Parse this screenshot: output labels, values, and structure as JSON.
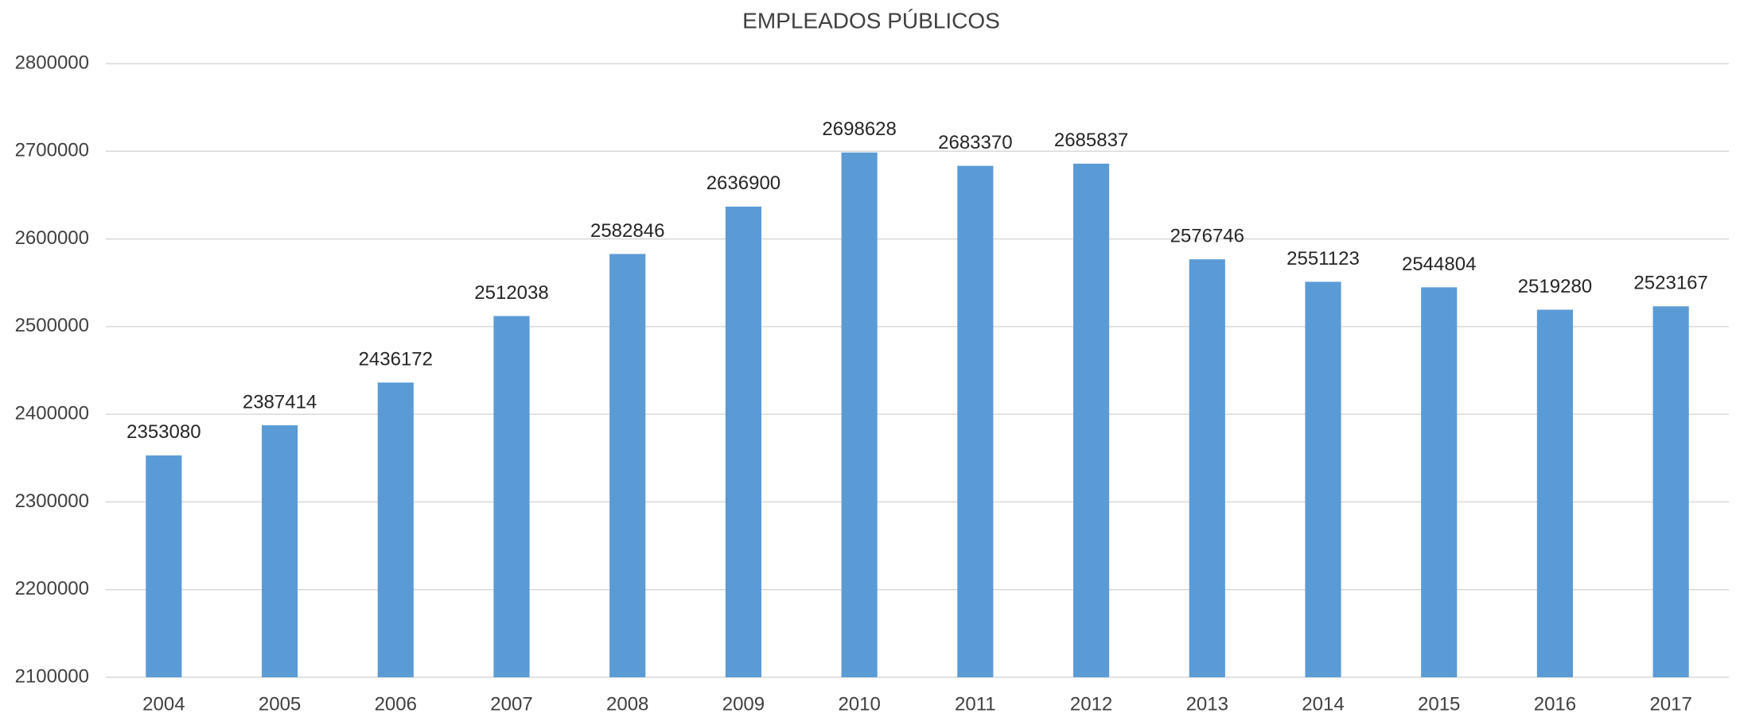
{
  "chart_data": {
    "type": "bar",
    "title": "EMPLEADOS PÚBLICOS",
    "categories": [
      "2004",
      "2005",
      "2006",
      "2007",
      "2008",
      "2009",
      "2010",
      "2011",
      "2012",
      "2013",
      "2014",
      "2015",
      "2016",
      "2017"
    ],
    "values": [
      2353080,
      2387414,
      2436172,
      2512038,
      2582846,
      2636900,
      2698628,
      2683370,
      2685837,
      2576746,
      2551123,
      2544804,
      2519280,
      2523167
    ],
    "color": "#5b9bd5",
    "ylim": [
      2100000,
      2800000
    ],
    "yticks": [
      2100000,
      2200000,
      2300000,
      2400000,
      2500000,
      2600000,
      2700000,
      2800000
    ],
    "grid": true
  }
}
